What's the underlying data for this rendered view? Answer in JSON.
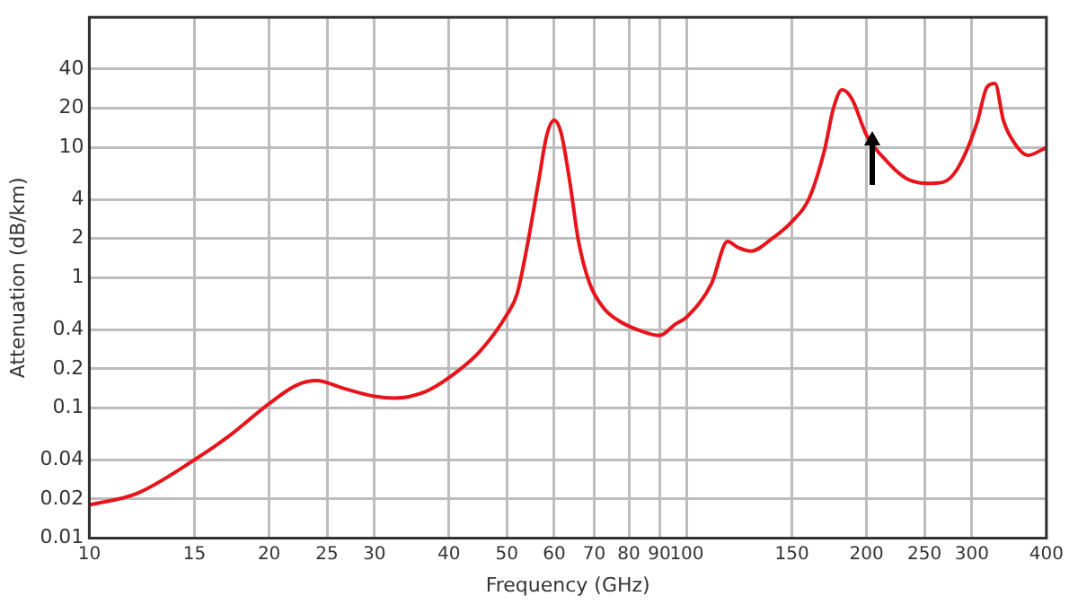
{
  "chart_data": {
    "type": "line",
    "xlabel": "Frequency (GHz)",
    "ylabel": "Attenuation (dB/km)",
    "log": "xy",
    "grid": true,
    "legend": false,
    "marker": "none",
    "line_style": "solid",
    "xlim": [
      10,
      400
    ],
    "xticks": [
      10,
      15,
      20,
      25,
      30,
      40,
      50,
      60,
      70,
      80,
      90,
      100,
      150,
      200,
      250,
      300,
      400
    ],
    "ylim": [
      0.01,
      100
    ],
    "yticks": [
      0.01,
      0.02,
      0.04,
      0.1,
      0.2,
      0.4,
      1,
      2,
      4,
      10,
      20,
      40
    ],
    "series": [
      {
        "color": "#e8141b",
        "x": [
          10,
          12,
          15,
          17.3,
          20,
          22.2,
          24,
          26.7,
          30,
          32.4,
          36.6,
          40,
          45,
          50,
          52,
          54,
          56.5,
          58.3,
          60,
          61.6,
          63.7,
          65.9,
          68.8,
          72.7,
          76.8,
          83.8,
          90,
          95.7,
          100,
          110,
          117,
          122,
          128,
          139,
          150,
          160,
          170,
          176,
          182,
          189,
          200,
          217,
          233,
          253,
          268,
          284,
          306,
          318,
          328,
          339,
          355,
          372,
          400
        ],
        "values": [
          0.018,
          0.022,
          0.04,
          0.063,
          0.108,
          0.149,
          0.162,
          0.141,
          0.123,
          0.119,
          0.134,
          0.171,
          0.27,
          0.52,
          0.75,
          1.7,
          5.5,
          12.4,
          16.2,
          13,
          5.5,
          1.9,
          0.9,
          0.58,
          0.47,
          0.39,
          0.36,
          0.44,
          0.5,
          0.9,
          1.9,
          1.7,
          1.6,
          2,
          2.7,
          4,
          9.5,
          20,
          27.7,
          23.6,
          12.4,
          7.7,
          5.8,
          5.3,
          5.4,
          6.9,
          15.4,
          29,
          31,
          16,
          10.5,
          8.7,
          10
        ]
      }
    ]
  }
}
